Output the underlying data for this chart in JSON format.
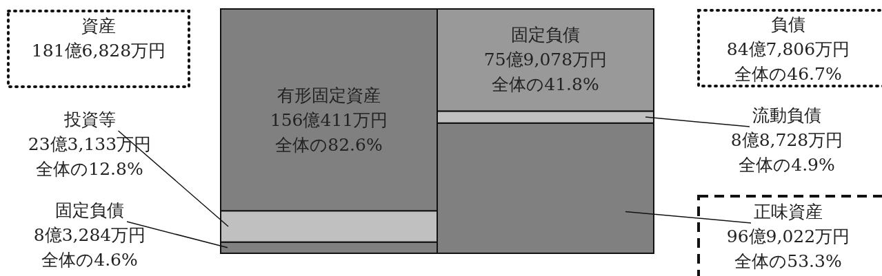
{
  "chart_data": {
    "type": "bar",
    "stacked": true,
    "categories": [
      null,
      null
    ],
    "series": [
      {
        "name": "固定負債",
        "color": "#808080",
        "values": [
          4.6,
          null
        ],
        "value_labels": [
          "8億3,284万円全体の4.6%",
          null
        ]
      },
      {
        "name": "投資等",
        "color": "#c0c0c0",
        "values": [
          12.8,
          null
        ],
        "value_labels": [
          "23億3,133万円全体の12.8%",
          null
        ]
      },
      {
        "name": "有形固定資産",
        "color": "#808080",
        "values": [
          82.6,
          null
        ],
        "value_labels": [
          "156億411万円全体の82.6%",
          null
        ]
      },
      {
        "name": "正味資産",
        "color": "#808080",
        "values": [
          null,
          53.3
        ],
        "value_labels": [
          null,
          "96億9,022万円全体の53.3%"
        ]
      },
      {
        "name": "流動負債",
        "color": "#c0c0c0",
        "values": [
          null,
          4.9
        ],
        "value_labels": [
          null,
          "8億8,728万円全体の4.9%"
        ]
      },
      {
        "name": "固定負債",
        "color": "#999999",
        "values": [
          null,
          41.8
        ],
        "value_labels": [
          null,
          "75億9,078万円全体の41.8%"
        ]
      }
    ],
    "annotations": [
      "資産",
      "181億6,828万円",
      "負債",
      "84億7,806万円全体の46.7%"
    ]
  }
}
